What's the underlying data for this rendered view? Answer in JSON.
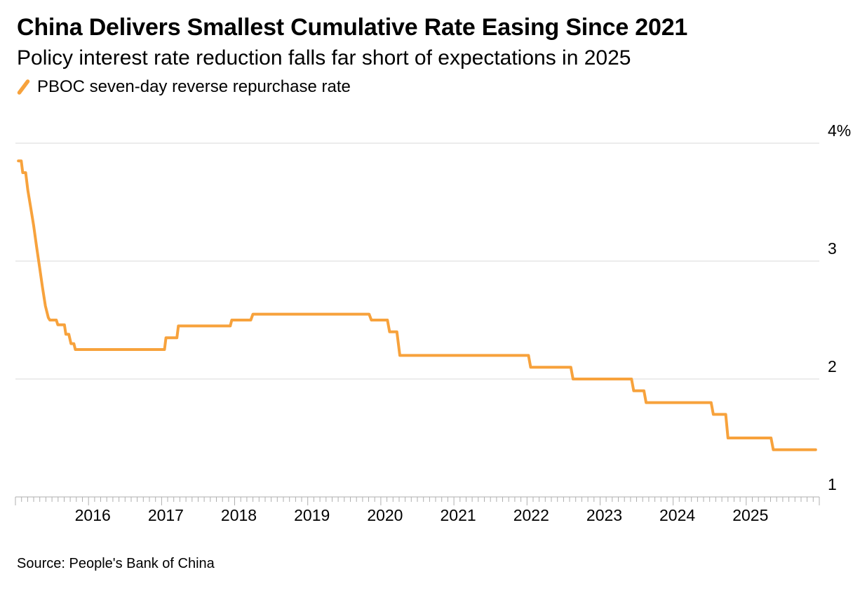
{
  "header": {
    "title": "China Delivers Smallest Cumulative Rate Easing Since 2021",
    "subtitle": "Policy interest rate reduction falls far short of expectations in 2025",
    "legend": {
      "label": "PBOC seven-day reverse repurchase rate",
      "color": "#F7A23C"
    }
  },
  "footer": {
    "source": "Source: People's Bank of China"
  },
  "chart_data": {
    "type": "line",
    "step": true,
    "title": "China Delivers Smallest Cumulative Rate Easing Since 2021",
    "subtitle": "Policy interest rate reduction falls far short of expectations in 2025",
    "xlim": [
      2015.0,
      2026.0
    ],
    "ylim": [
      1,
      4
    ],
    "grid": true,
    "gridline_values": [
      4,
      3,
      2
    ],
    "x_year_labels": [
      "2016",
      "2017",
      "2018",
      "2019",
      "2020",
      "2021",
      "2022",
      "2023",
      "2024",
      "2025"
    ],
    "y_ticks": [
      {
        "value": 4,
        "label": "4%"
      },
      {
        "value": 3,
        "label": "3"
      },
      {
        "value": 2,
        "label": "2"
      },
      {
        "value": 1,
        "label": "1"
      }
    ],
    "legend_position": "top-left",
    "style": {
      "line_color": "#F7A23C",
      "grid_color": "#DADADA",
      "axis_color": "#AFAFAF",
      "text_color": "#000000"
    },
    "series": [
      {
        "name": "PBOC seven-day reverse repurchase rate",
        "color": "#F7A23C",
        "points": [
          [
            2015.04,
            3.85
          ],
          [
            2015.08,
            3.85
          ],
          [
            2015.1,
            3.75
          ],
          [
            2015.14,
            3.75
          ],
          [
            2015.17,
            3.6
          ],
          [
            2015.21,
            3.45
          ],
          [
            2015.25,
            3.3
          ],
          [
            2015.29,
            3.12
          ],
          [
            2015.33,
            2.95
          ],
          [
            2015.37,
            2.78
          ],
          [
            2015.41,
            2.62
          ],
          [
            2015.45,
            2.52
          ],
          [
            2015.47,
            2.5
          ],
          [
            2015.56,
            2.5
          ],
          [
            2015.58,
            2.46
          ],
          [
            2015.67,
            2.46
          ],
          [
            2015.69,
            2.38
          ],
          [
            2015.73,
            2.38
          ],
          [
            2015.76,
            2.3
          ],
          [
            2015.8,
            2.3
          ],
          [
            2015.82,
            2.25
          ],
          [
            2017.04,
            2.25
          ],
          [
            2017.06,
            2.35
          ],
          [
            2017.21,
            2.35
          ],
          [
            2017.23,
            2.45
          ],
          [
            2017.94,
            2.45
          ],
          [
            2017.96,
            2.5
          ],
          [
            2018.22,
            2.5
          ],
          [
            2018.25,
            2.55
          ],
          [
            2019.84,
            2.55
          ],
          [
            2019.87,
            2.5
          ],
          [
            2020.09,
            2.5
          ],
          [
            2020.12,
            2.4
          ],
          [
            2020.22,
            2.4
          ],
          [
            2020.26,
            2.2
          ],
          [
            2022.02,
            2.2
          ],
          [
            2022.05,
            2.1
          ],
          [
            2022.6,
            2.1
          ],
          [
            2022.63,
            2.0
          ],
          [
            2023.43,
            2.0
          ],
          [
            2023.46,
            1.9
          ],
          [
            2023.6,
            1.9
          ],
          [
            2023.63,
            1.8
          ],
          [
            2024.52,
            1.8
          ],
          [
            2024.55,
            1.7
          ],
          [
            2024.72,
            1.7
          ],
          [
            2024.75,
            1.5
          ],
          [
            2025.34,
            1.5
          ],
          [
            2025.37,
            1.4
          ],
          [
            2025.95,
            1.4
          ]
        ]
      }
    ],
    "source": "Source: People's Bank of China"
  }
}
